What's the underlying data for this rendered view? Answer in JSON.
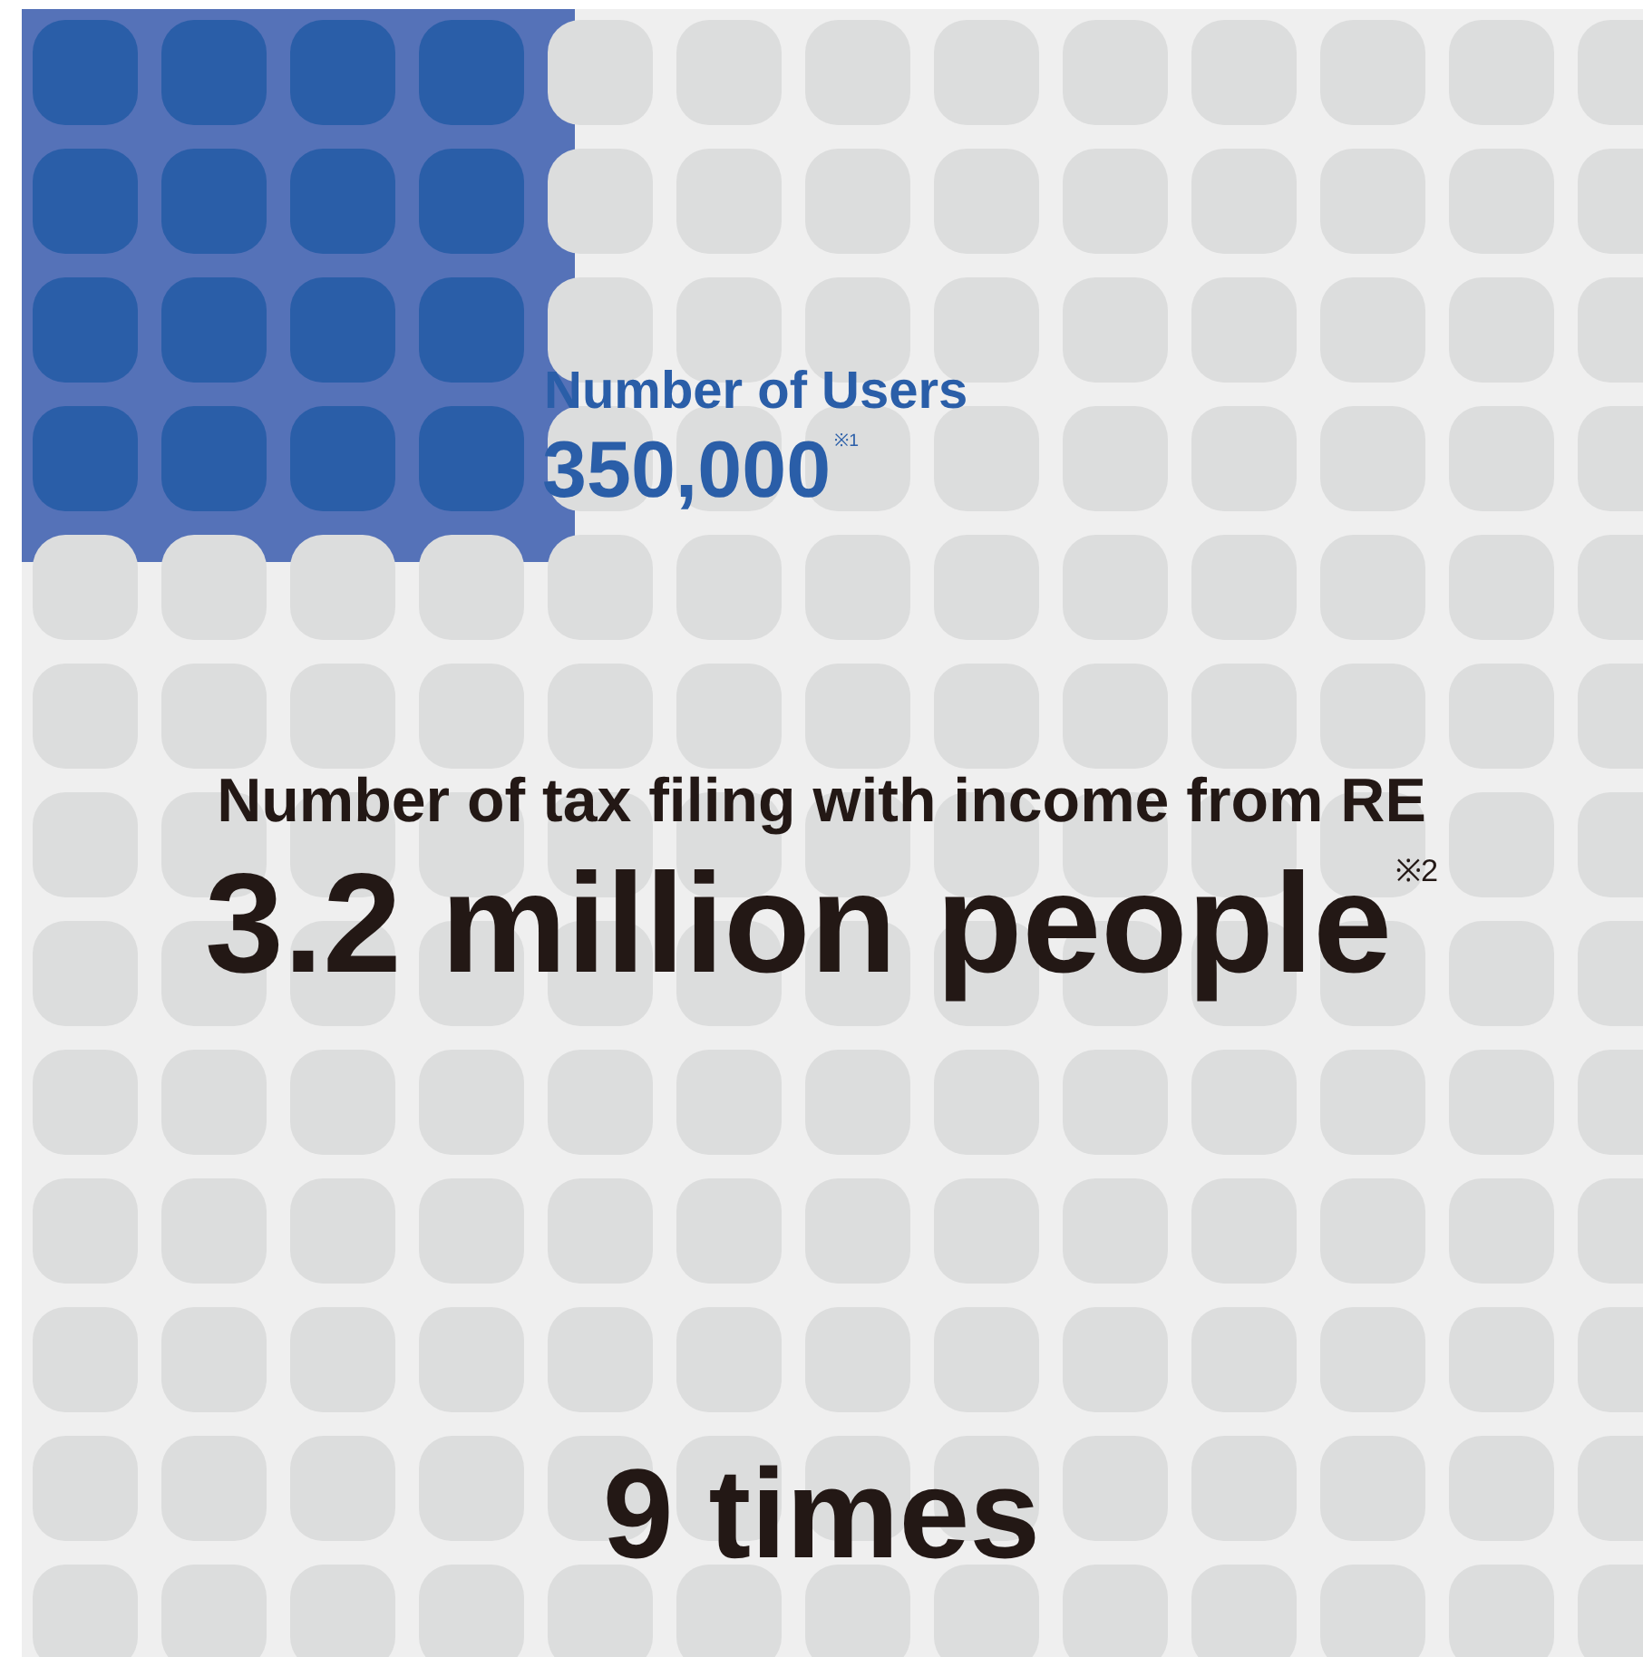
{
  "chart_data": {
    "type": "other",
    "categories": [
      "Number of Users",
      "Number of tax filing with income from RE"
    ],
    "values": [
      350000,
      3200000
    ],
    "value_labels": [
      "350,000$^{※1}$",
      "3.2 million people$^{※2}$"
    ],
    "annotations": [
      "9 times"
    ]
  }
}
